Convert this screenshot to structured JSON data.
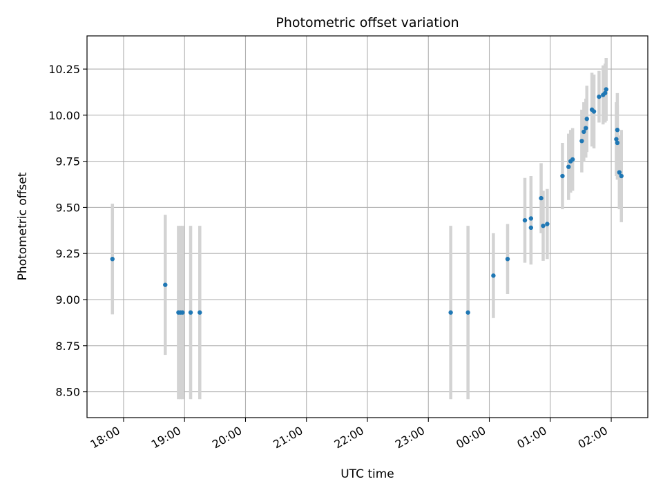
{
  "chart_data": {
    "type": "scatter",
    "title": "Photometric offset variation",
    "xlabel": "UTC time",
    "ylabel": "Photometric offset",
    "x_is_time": true,
    "xlim": [
      "17:24",
      "02:36"
    ],
    "ylim": [
      8.36,
      10.43
    ],
    "xticks": [
      "18:00",
      "19:00",
      "20:00",
      "21:00",
      "22:00",
      "23:00",
      "00:00",
      "01:00",
      "02:00"
    ],
    "yticks": [
      "8.50",
      "8.75",
      "9.00",
      "9.25",
      "9.50",
      "9.75",
      "10.00",
      "10.25"
    ],
    "grid": true,
    "colors": {
      "marker": "#1f77b4",
      "errorbar": "#d3d3d3",
      "grid": "#b0b0b0"
    },
    "points": [
      {
        "x": "17:49",
        "y": 9.22,
        "err": 0.3
      },
      {
        "x": "18:41",
        "y": 9.08,
        "err": 0.38
      },
      {
        "x": "18:54",
        "y": 8.93,
        "err": 0.47
      },
      {
        "x": "18:56",
        "y": 8.93,
        "err": 0.47
      },
      {
        "x": "18:58",
        "y": 8.93,
        "err": 0.47
      },
      {
        "x": "19:06",
        "y": 8.93,
        "err": 0.47
      },
      {
        "x": "19:15",
        "y": 8.93,
        "err": 0.47
      },
      {
        "x": "23:22",
        "y": 8.93,
        "err": 0.47
      },
      {
        "x": "23:39",
        "y": 8.93,
        "err": 0.47
      },
      {
        "x": "00:04",
        "y": 9.13,
        "err": 0.23
      },
      {
        "x": "00:18",
        "y": 9.22,
        "err": 0.19
      },
      {
        "x": "00:35",
        "y": 9.43,
        "err": 0.23
      },
      {
        "x": "00:41",
        "y": 9.39,
        "err": 0.2
      },
      {
        "x": "00:41",
        "y": 9.44,
        "err": 0.23
      },
      {
        "x": "00:51",
        "y": 9.55,
        "err": 0.19
      },
      {
        "x": "00:53",
        "y": 9.4,
        "err": 0.19
      },
      {
        "x": "00:57",
        "y": 9.41,
        "err": 0.19
      },
      {
        "x": "01:12",
        "y": 9.67,
        "err": 0.18
      },
      {
        "x": "01:18",
        "y": 9.72,
        "err": 0.18
      },
      {
        "x": "01:20",
        "y": 9.75,
        "err": 0.17
      },
      {
        "x": "01:22",
        "y": 9.76,
        "err": 0.17
      },
      {
        "x": "01:31",
        "y": 9.86,
        "err": 0.17
      },
      {
        "x": "01:33",
        "y": 9.91,
        "err": 0.16
      },
      {
        "x": "01:35",
        "y": 9.93,
        "err": 0.16
      },
      {
        "x": "01:36",
        "y": 9.98,
        "err": 0.18
      },
      {
        "x": "01:41",
        "y": 10.03,
        "err": 0.2
      },
      {
        "x": "01:43",
        "y": 10.02,
        "err": 0.2
      },
      {
        "x": "01:48",
        "y": 10.1,
        "err": 0.14
      },
      {
        "x": "01:52",
        "y": 10.11,
        "err": 0.16
      },
      {
        "x": "01:54",
        "y": 10.12,
        "err": 0.16
      },
      {
        "x": "01:55",
        "y": 10.14,
        "err": 0.17
      },
      {
        "x": "02:05",
        "y": 9.87,
        "err": 0.2
      },
      {
        "x": "02:06",
        "y": 9.85,
        "err": 0.2
      },
      {
        "x": "02:06",
        "y": 9.92,
        "err": 0.2
      },
      {
        "x": "02:08",
        "y": 9.69,
        "err": 0.2
      },
      {
        "x": "02:10",
        "y": 9.67,
        "err": 0.25
      }
    ]
  }
}
